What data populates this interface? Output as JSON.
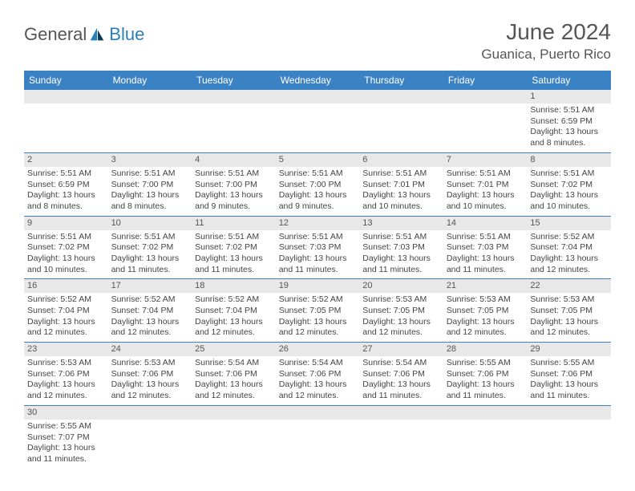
{
  "brand": {
    "general": "General",
    "blue": "Blue"
  },
  "title": "June 2024",
  "location": "Guanica, Puerto Rico",
  "colors": {
    "header_bg": "#3b82c4",
    "header_text": "#ffffff",
    "daynum_bg": "#e8e8e8",
    "border": "#3b82c4",
    "text": "#444444",
    "title_text": "#555555"
  },
  "typography": {
    "title_fontsize": 28,
    "location_fontsize": 17,
    "header_fontsize": 12,
    "daynum_fontsize": 11,
    "body_fontsize": 10.5
  },
  "weekdays": [
    "Sunday",
    "Monday",
    "Tuesday",
    "Wednesday",
    "Thursday",
    "Friday",
    "Saturday"
  ],
  "weeks": [
    [
      {
        "day": null
      },
      {
        "day": null
      },
      {
        "day": null
      },
      {
        "day": null
      },
      {
        "day": null
      },
      {
        "day": null
      },
      {
        "day": 1,
        "sunrise": "Sunrise: 5:51 AM",
        "sunset": "Sunset: 6:59 PM",
        "daylight1": "Daylight: 13 hours",
        "daylight2": "and 8 minutes."
      }
    ],
    [
      {
        "day": 2,
        "sunrise": "Sunrise: 5:51 AM",
        "sunset": "Sunset: 6:59 PM",
        "daylight1": "Daylight: 13 hours",
        "daylight2": "and 8 minutes."
      },
      {
        "day": 3,
        "sunrise": "Sunrise: 5:51 AM",
        "sunset": "Sunset: 7:00 PM",
        "daylight1": "Daylight: 13 hours",
        "daylight2": "and 8 minutes."
      },
      {
        "day": 4,
        "sunrise": "Sunrise: 5:51 AM",
        "sunset": "Sunset: 7:00 PM",
        "daylight1": "Daylight: 13 hours",
        "daylight2": "and 9 minutes."
      },
      {
        "day": 5,
        "sunrise": "Sunrise: 5:51 AM",
        "sunset": "Sunset: 7:00 PM",
        "daylight1": "Daylight: 13 hours",
        "daylight2": "and 9 minutes."
      },
      {
        "day": 6,
        "sunrise": "Sunrise: 5:51 AM",
        "sunset": "Sunset: 7:01 PM",
        "daylight1": "Daylight: 13 hours",
        "daylight2": "and 10 minutes."
      },
      {
        "day": 7,
        "sunrise": "Sunrise: 5:51 AM",
        "sunset": "Sunset: 7:01 PM",
        "daylight1": "Daylight: 13 hours",
        "daylight2": "and 10 minutes."
      },
      {
        "day": 8,
        "sunrise": "Sunrise: 5:51 AM",
        "sunset": "Sunset: 7:02 PM",
        "daylight1": "Daylight: 13 hours",
        "daylight2": "and 10 minutes."
      }
    ],
    [
      {
        "day": 9,
        "sunrise": "Sunrise: 5:51 AM",
        "sunset": "Sunset: 7:02 PM",
        "daylight1": "Daylight: 13 hours",
        "daylight2": "and 10 minutes."
      },
      {
        "day": 10,
        "sunrise": "Sunrise: 5:51 AM",
        "sunset": "Sunset: 7:02 PM",
        "daylight1": "Daylight: 13 hours",
        "daylight2": "and 11 minutes."
      },
      {
        "day": 11,
        "sunrise": "Sunrise: 5:51 AM",
        "sunset": "Sunset: 7:02 PM",
        "daylight1": "Daylight: 13 hours",
        "daylight2": "and 11 minutes."
      },
      {
        "day": 12,
        "sunrise": "Sunrise: 5:51 AM",
        "sunset": "Sunset: 7:03 PM",
        "daylight1": "Daylight: 13 hours",
        "daylight2": "and 11 minutes."
      },
      {
        "day": 13,
        "sunrise": "Sunrise: 5:51 AM",
        "sunset": "Sunset: 7:03 PM",
        "daylight1": "Daylight: 13 hours",
        "daylight2": "and 11 minutes."
      },
      {
        "day": 14,
        "sunrise": "Sunrise: 5:51 AM",
        "sunset": "Sunset: 7:03 PM",
        "daylight1": "Daylight: 13 hours",
        "daylight2": "and 11 minutes."
      },
      {
        "day": 15,
        "sunrise": "Sunrise: 5:52 AM",
        "sunset": "Sunset: 7:04 PM",
        "daylight1": "Daylight: 13 hours",
        "daylight2": "and 12 minutes."
      }
    ],
    [
      {
        "day": 16,
        "sunrise": "Sunrise: 5:52 AM",
        "sunset": "Sunset: 7:04 PM",
        "daylight1": "Daylight: 13 hours",
        "daylight2": "and 12 minutes."
      },
      {
        "day": 17,
        "sunrise": "Sunrise: 5:52 AM",
        "sunset": "Sunset: 7:04 PM",
        "daylight1": "Daylight: 13 hours",
        "daylight2": "and 12 minutes."
      },
      {
        "day": 18,
        "sunrise": "Sunrise: 5:52 AM",
        "sunset": "Sunset: 7:04 PM",
        "daylight1": "Daylight: 13 hours",
        "daylight2": "and 12 minutes."
      },
      {
        "day": 19,
        "sunrise": "Sunrise: 5:52 AM",
        "sunset": "Sunset: 7:05 PM",
        "daylight1": "Daylight: 13 hours",
        "daylight2": "and 12 minutes."
      },
      {
        "day": 20,
        "sunrise": "Sunrise: 5:53 AM",
        "sunset": "Sunset: 7:05 PM",
        "daylight1": "Daylight: 13 hours",
        "daylight2": "and 12 minutes."
      },
      {
        "day": 21,
        "sunrise": "Sunrise: 5:53 AM",
        "sunset": "Sunset: 7:05 PM",
        "daylight1": "Daylight: 13 hours",
        "daylight2": "and 12 minutes."
      },
      {
        "day": 22,
        "sunrise": "Sunrise: 5:53 AM",
        "sunset": "Sunset: 7:05 PM",
        "daylight1": "Daylight: 13 hours",
        "daylight2": "and 12 minutes."
      }
    ],
    [
      {
        "day": 23,
        "sunrise": "Sunrise: 5:53 AM",
        "sunset": "Sunset: 7:06 PM",
        "daylight1": "Daylight: 13 hours",
        "daylight2": "and 12 minutes."
      },
      {
        "day": 24,
        "sunrise": "Sunrise: 5:53 AM",
        "sunset": "Sunset: 7:06 PM",
        "daylight1": "Daylight: 13 hours",
        "daylight2": "and 12 minutes."
      },
      {
        "day": 25,
        "sunrise": "Sunrise: 5:54 AM",
        "sunset": "Sunset: 7:06 PM",
        "daylight1": "Daylight: 13 hours",
        "daylight2": "and 12 minutes."
      },
      {
        "day": 26,
        "sunrise": "Sunrise: 5:54 AM",
        "sunset": "Sunset: 7:06 PM",
        "daylight1": "Daylight: 13 hours",
        "daylight2": "and 12 minutes."
      },
      {
        "day": 27,
        "sunrise": "Sunrise: 5:54 AM",
        "sunset": "Sunset: 7:06 PM",
        "daylight1": "Daylight: 13 hours",
        "daylight2": "and 11 minutes."
      },
      {
        "day": 28,
        "sunrise": "Sunrise: 5:55 AM",
        "sunset": "Sunset: 7:06 PM",
        "daylight1": "Daylight: 13 hours",
        "daylight2": "and 11 minutes."
      },
      {
        "day": 29,
        "sunrise": "Sunrise: 5:55 AM",
        "sunset": "Sunset: 7:06 PM",
        "daylight1": "Daylight: 13 hours",
        "daylight2": "and 11 minutes."
      }
    ],
    [
      {
        "day": 30,
        "sunrise": "Sunrise: 5:55 AM",
        "sunset": "Sunset: 7:07 PM",
        "daylight1": "Daylight: 13 hours",
        "daylight2": "and 11 minutes."
      },
      {
        "day": null
      },
      {
        "day": null
      },
      {
        "day": null
      },
      {
        "day": null
      },
      {
        "day": null
      },
      {
        "day": null
      }
    ]
  ]
}
